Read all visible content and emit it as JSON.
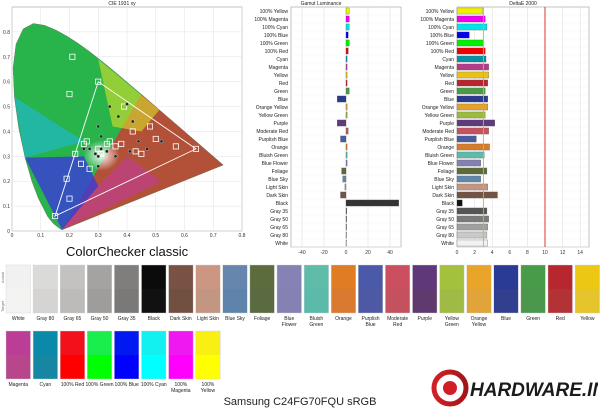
{
  "chart_data": [
    {
      "type": "scatter",
      "title": "CIE 1931 xy",
      "xlim": [
        0,
        0.8
      ],
      "ylim": [
        0,
        0.9
      ],
      "x_ticks": [
        "0",
        "0.1",
        "0.2",
        "0.3",
        "0.4",
        "0.5",
        "0.6",
        "0.7",
        "0.8"
      ],
      "y_ticks": [
        "0",
        "0.1",
        "0.2",
        "0.3",
        "0.4",
        "0.5",
        "0.6",
        "0.7",
        "0.8"
      ],
      "gamut_triangle": [
        [
          0.64,
          0.33
        ],
        [
          0.3,
          0.6
        ],
        [
          0.15,
          0.06
        ]
      ],
      "targets": [
        [
          0.3,
          0.6
        ],
        [
          0.21,
          0.7
        ],
        [
          0.39,
          0.5
        ],
        [
          0.2,
          0.55
        ],
        [
          0.48,
          0.42
        ],
        [
          0.5,
          0.37
        ],
        [
          0.33,
          0.35
        ],
        [
          0.38,
          0.35
        ],
        [
          0.43,
          0.32
        ],
        [
          0.45,
          0.31
        ],
        [
          0.26,
          0.36
        ],
        [
          0.3,
          0.33
        ],
        [
          0.34,
          0.36
        ],
        [
          0.31,
          0.31
        ],
        [
          0.36,
          0.34
        ],
        [
          0.24,
          0.27
        ],
        [
          0.27,
          0.25
        ],
        [
          0.25,
          0.35
        ],
        [
          0.22,
          0.31
        ],
        [
          0.19,
          0.21
        ],
        [
          0.2,
          0.13
        ],
        [
          0.15,
          0.06
        ],
        [
          0.64,
          0.33
        ],
        [
          0.57,
          0.34
        ],
        [
          0.42,
          0.4
        ]
      ],
      "measured": [
        [
          0.4,
          0.51
        ],
        [
          0.37,
          0.46
        ],
        [
          0.42,
          0.44
        ],
        [
          0.34,
          0.5
        ],
        [
          0.3,
          0.42
        ],
        [
          0.33,
          0.32
        ],
        [
          0.31,
          0.33
        ],
        [
          0.3,
          0.3
        ],
        [
          0.47,
          0.33
        ],
        [
          0.44,
          0.36
        ],
        [
          0.27,
          0.33
        ],
        [
          0.29,
          0.31
        ],
        [
          0.41,
          0.32
        ],
        [
          0.36,
          0.3
        ],
        [
          0.52,
          0.36
        ],
        [
          0.25,
          0.33
        ],
        [
          0.31,
          0.38
        ],
        [
          0.3,
          0.26
        ]
      ],
      "grid": true
    },
    {
      "type": "bar",
      "title": "Gamut Luminance",
      "orientation": "horizontal",
      "xlim": [
        -50,
        50
      ],
      "x_ticks": [
        "-40",
        "-20",
        "0",
        "20",
        "40"
      ],
      "categories": [
        "100% Yellow",
        "100% Magenta",
        "100% Cyan",
        "100% Blue",
        "100% Green",
        "100% Red",
        "Cyan",
        "Magenta",
        "Yellow",
        "Red",
        "Green",
        "Blue",
        "Orange Yellow",
        "Yellow Green",
        "Purple",
        "Moderate Red",
        "Purplish Blue",
        "Orange",
        "Bluish Green",
        "Blue Flower",
        "Foliage",
        "Blue Sky",
        "Light Skin",
        "Dark Skin",
        "Black",
        "Gray 35",
        "Gray 50",
        "Gray 65",
        "Gray 80",
        "White"
      ],
      "values": [
        3,
        3,
        3,
        2,
        3,
        2,
        1,
        1,
        1,
        1,
        3,
        -8,
        1,
        1,
        -8,
        2,
        -5,
        1,
        1,
        1,
        -4,
        -3,
        -1,
        -5,
        48,
        0,
        0,
        0,
        0,
        0
      ],
      "bar_colors": [
        "#f0f000",
        "#f000f0",
        "#00e6e6",
        "#0000f0",
        "#00f000",
        "#f00000",
        "#0a8fa5",
        "#b43c8c",
        "#e8c21a",
        "#b8262d",
        "#4c9a46",
        "#2a3a8e",
        "#e3a22a",
        "#9dba3e",
        "#5f3a7c",
        "#c5525f",
        "#4a5ba4",
        "#d97c2a",
        "#5dbba9",
        "#8480b3",
        "#5b6c3c",
        "#6287ad",
        "#c49682",
        "#735444",
        "#333333",
        "#555555",
        "#7a7a7a",
        "#a0a0a0",
        "#c9c9c9",
        "#f2f2f2"
      ]
    },
    {
      "type": "bar",
      "title": "DeltaE 2000",
      "orientation": "horizontal",
      "xlim": [
        0,
        15
      ],
      "x_ticks": [
        "0",
        "2",
        "4",
        "6",
        "8",
        "10",
        "12",
        "14"
      ],
      "reference_lines": [
        3,
        10
      ],
      "categories": [
        "100% Yellow",
        "100% Magenta",
        "100% Cyan",
        "100% Blue",
        "100% Green",
        "100% Red",
        "Cyan",
        "Magenta",
        "Yellow",
        "Red",
        "Green",
        "Blue",
        "Orange Yellow",
        "Yellow Green",
        "Purple",
        "Moderate Red",
        "Purplish Blue",
        "Orange",
        "Bluish Green",
        "Blue Flower",
        "Foliage",
        "Blue Sky",
        "Light Skin",
        "Dark Skin",
        "Black",
        "Gray 35",
        "Gray 50",
        "Gray 65",
        "Gray 80",
        "White"
      ],
      "values": [
        2.9,
        3.2,
        3.4,
        1.4,
        3.0,
        3.2,
        3.3,
        3.6,
        3.6,
        3.5,
        3.2,
        3.5,
        3.5,
        3.2,
        4.3,
        3.6,
        2.2,
        3.7,
        3.1,
        2.7,
        3.4,
        2.7,
        3.5,
        4.6,
        0.6,
        3.4,
        3.6,
        3.5,
        3.4,
        3.5
      ],
      "bar_colors": [
        "#f0f000",
        "#f000f0",
        "#00e6e6",
        "#0000f0",
        "#00f000",
        "#f00000",
        "#0a8fa5",
        "#b43c8c",
        "#e8c21a",
        "#b8262d",
        "#4c9a46",
        "#2a3a8e",
        "#e3a22a",
        "#9dba3e",
        "#5f3a7c",
        "#c5525f",
        "#4a5ba4",
        "#d97c2a",
        "#5dbba9",
        "#8480b3",
        "#5b6c3c",
        "#6287ad",
        "#c49682",
        "#735444",
        "#111111",
        "#555555",
        "#7a7a7a",
        "#a0a0a0",
        "#c9c9c9",
        "#f2f2f2"
      ]
    }
  ],
  "colorchecker_label": "ColorChecker classic",
  "swatches_row1": [
    {
      "label": "White",
      "actual": "#f1f1f1",
      "target": "#f3f3f2"
    },
    {
      "label": "Gray 80",
      "actual": "#dadad9",
      "target": "#d6d4d2"
    },
    {
      "label": "Gray 65",
      "actual": "#c3c2c1",
      "target": "#bdbbb9"
    },
    {
      "label": "Gray 50",
      "actual": "#a4a3a2",
      "target": "#9f9d9b"
    },
    {
      "label": "Gray 35",
      "actual": "#7f7e7d",
      "target": "#7a7978"
    },
    {
      "label": "Black",
      "actual": "#0b0b0b",
      "target": "#111111"
    },
    {
      "label": "Dark Skin",
      "actual": "#7a5244",
      "target": "#715041"
    },
    {
      "label": "Light Skin",
      "actual": "#cc9683",
      "target": "#c29681"
    },
    {
      "label": "Blue Sky",
      "actual": "#6686ae",
      "target": "#5f84ab"
    },
    {
      "label": "Foliage",
      "actual": "#5d6c3c",
      "target": "#5b6b41"
    },
    {
      "label": "Blue Flower",
      "actual": "#8682b5",
      "target": "#8482b2"
    },
    {
      "label": "Bluish Green",
      "actual": "#5ebca9",
      "target": "#5bbaa9"
    },
    {
      "label": "Orange",
      "actual": "#e07c23",
      "target": "#d97a30"
    },
    {
      "label": "Purplish Blue",
      "actual": "#4a5aa8",
      "target": "#4d5aa3"
    },
    {
      "label": "Moderate Red",
      "actual": "#cb4f5f",
      "target": "#c3525e"
    },
    {
      "label": "Purple",
      "actual": "#5e3879",
      "target": "#5f3a6e"
    },
    {
      "label": "Yellow Green",
      "actual": "#a3c13c",
      "target": "#9fba45"
    },
    {
      "label": "Orange Yellow",
      "actual": "#e9a42a",
      "target": "#e1a43a"
    },
    {
      "label": "Blue",
      "actual": "#2a3b95",
      "target": "#313f8e"
    },
    {
      "label": "Green",
      "actual": "#479b49",
      "target": "#4b974d"
    },
    {
      "label": "Red",
      "actual": "#b8262f",
      "target": "#b23235"
    },
    {
      "label": "Yellow",
      "actual": "#ecc815",
      "target": "#e6c42b"
    }
  ],
  "swatches_row2": [
    {
      "label": "Magenta",
      "actual": "#bb3d95",
      "target": "#b7468c"
    },
    {
      "label": "Cyan",
      "actual": "#0a8aa8",
      "target": "#1686a2"
    },
    {
      "label": "100% Red",
      "actual": "#f2101a",
      "target": "#ff0000"
    },
    {
      "label": "100% Green",
      "actual": "#19ee4c",
      "target": "#00ff00"
    },
    {
      "label": "100% Blue",
      "actual": "#0019f0",
      "target": "#0000ff"
    },
    {
      "label": "100% Cyan",
      "actual": "#13f0f0",
      "target": "#00ffff"
    },
    {
      "label": "100% Magenta",
      "actual": "#f018f0",
      "target": "#ff00ff"
    },
    {
      "label": "100% Yellow",
      "actual": "#f8f013",
      "target": "#ffff00"
    }
  ],
  "actual_label": "Actual",
  "target_label": "Target",
  "watermark": "HARDWARE.INFO",
  "caption": "Samsung C24FG70FQU sRGB"
}
